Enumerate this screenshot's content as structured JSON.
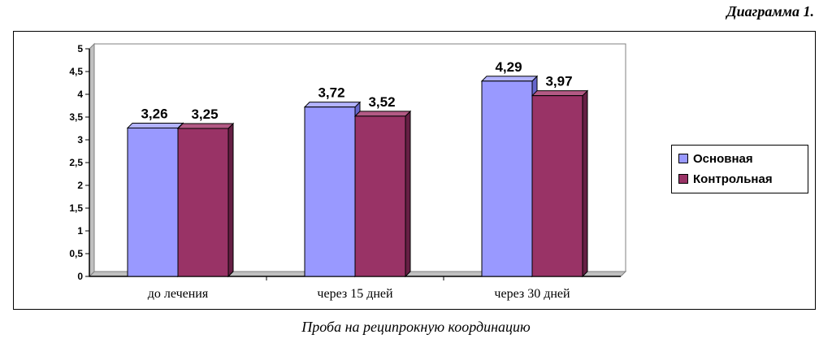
{
  "heading": "Диаграмма 1.",
  "caption": "Проба на реципрокную координацию",
  "colors": {
    "series1": "#9999ff",
    "series2": "#993366",
    "plot_bg": "#ffffff",
    "grid": "#c0c0c0"
  },
  "chart_data": {
    "type": "bar",
    "categories": [
      "до лечения",
      "через 15 дней",
      "через 30 дней"
    ],
    "series": [
      {
        "name": "Основная",
        "values": [
          3.26,
          3.72,
          4.29
        ],
        "labels": [
          "3,26",
          "3,72",
          "4,29"
        ]
      },
      {
        "name": "Контрольная",
        "values": [
          3.25,
          3.52,
          3.97
        ],
        "labels": [
          "3,25",
          "3,52",
          "3,97"
        ]
      }
    ],
    "yticks": [
      "0",
      "0,5",
      "1",
      "1,5",
      "2",
      "2,5",
      "3",
      "3,5",
      "4",
      "4,5",
      "5"
    ],
    "ylim": [
      0,
      5
    ],
    "legend_position": "right",
    "grid": false
  }
}
